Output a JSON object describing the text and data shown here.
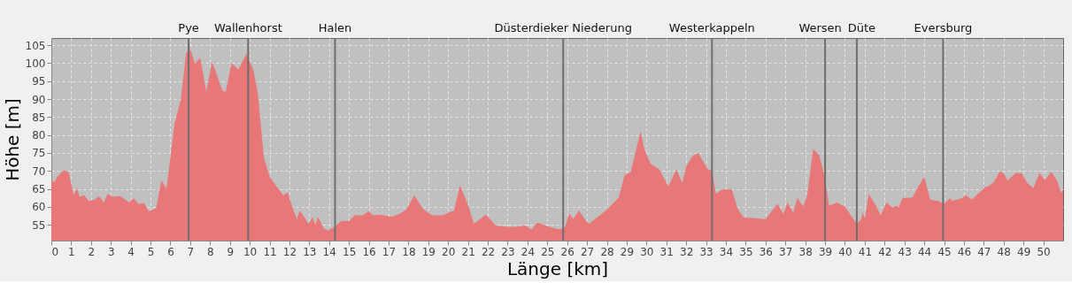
{
  "chart_data": {
    "type": "area",
    "xlabel": "Länge [km]",
    "ylabel": "Höhe [m]",
    "xlim": [
      0,
      51
    ],
    "ylim": [
      50.6,
      107
    ],
    "xticks": [
      0,
      1,
      2,
      3,
      4,
      5,
      6,
      7,
      8,
      9,
      10,
      11,
      12,
      13,
      14,
      15,
      16,
      17,
      18,
      19,
      20,
      21,
      22,
      23,
      24,
      25,
      26,
      27,
      28,
      29,
      30,
      31,
      32,
      33,
      34,
      35,
      36,
      37,
      38,
      39,
      40,
      41,
      42,
      43,
      44,
      45,
      46,
      47,
      48,
      49,
      50
    ],
    "yticks": [
      55,
      60,
      65,
      70,
      75,
      80,
      85,
      90,
      95,
      100,
      105
    ],
    "grid": true,
    "series": [
      {
        "color": "#e87878",
        "x": [
          0,
          0.15,
          0.3,
          0.63,
          0.87,
          1.13,
          1.28,
          1.43,
          1.66,
          1.88,
          2.19,
          2.41,
          2.64,
          2.84,
          3.09,
          3.47,
          3.92,
          4.15,
          4.37,
          4.68,
          4.9,
          5.28,
          5.55,
          5.8,
          5.91,
          6.21,
          6.52,
          6.79,
          6.97,
          7.24,
          7.51,
          7.8,
          8.1,
          8.42,
          8.63,
          8.79,
          9.08,
          9.43,
          9.83,
          10.18,
          10.41,
          10.71,
          11.01,
          11.31,
          11.69,
          11.92,
          12.07,
          12.37,
          12.52,
          12.97,
          13.17,
          13.3,
          13.45,
          13.73,
          13.94,
          14.25,
          14.63,
          15,
          15.3,
          15.68,
          16,
          16.2,
          16.6,
          17.15,
          17.6,
          17.9,
          18.3,
          18.75,
          19.2,
          19.7,
          20.3,
          20.6,
          21,
          21.3,
          21.9,
          22.4,
          22.95,
          23.4,
          23.9,
          24.2,
          24.5,
          25.1,
          25.6,
          25.9,
          26.1,
          26.3,
          26.6,
          26.9,
          27.1,
          27.5,
          28,
          28.6,
          28.9,
          29.2,
          29.7,
          29.9,
          30.2,
          30.65,
          31.1,
          31.5,
          31.8,
          32,
          32.3,
          32.6,
          33.1,
          33.3,
          33.5,
          33.8,
          34.3,
          34.6,
          34.9,
          35.5,
          36,
          36.6,
          36.9,
          37.1,
          37.4,
          37.6,
          37.9,
          38.1,
          38.4,
          38.7,
          39,
          39.2,
          39.6,
          40,
          40.3,
          40.6,
          40.8,
          40.9,
          41,
          41.2,
          41.6,
          41.8,
          42.1,
          42.4,
          42.6,
          42.7,
          42.9,
          43.4,
          43.7,
          44,
          44.3,
          44.7,
          45,
          45.3,
          45.4,
          45.9,
          46.1,
          46.4,
          46.7,
          47.1,
          47.2,
          47.5,
          47.8,
          48,
          48.2,
          48.6,
          48.9,
          49.2,
          49.5,
          49.8,
          50.1,
          50.4,
          50.7,
          50.9,
          51
        ],
        "values": [
          67.6,
          66.8,
          68.4,
          70.2,
          69.6,
          63.2,
          65.2,
          62.8,
          63.2,
          61.6,
          62,
          63,
          61.2,
          63.6,
          62.8,
          63,
          61.2,
          62.4,
          60.8,
          61,
          58.8,
          59.6,
          67.4,
          65,
          69.6,
          83.3,
          89.7,
          102.6,
          104.6,
          99.8,
          101.6,
          92.1,
          100.4,
          95.5,
          92.3,
          92.1,
          100,
          98.2,
          102.6,
          98.2,
          91.7,
          73.7,
          68.4,
          66,
          63.2,
          64,
          61.2,
          56.6,
          59,
          55.3,
          57.2,
          55,
          57.2,
          54,
          53.4,
          54.4,
          56.1,
          56,
          57.6,
          57.6,
          58.8,
          57.6,
          57.8,
          57.2,
          58.2,
          59.3,
          63.2,
          59.3,
          57.6,
          57.6,
          59,
          66,
          60.6,
          55.3,
          57.8,
          54.8,
          54.4,
          54.4,
          54.8,
          53.7,
          55.6,
          54.4,
          53.7,
          54.4,
          58.2,
          56.6,
          59,
          56.4,
          55.3,
          57,
          59.2,
          62.6,
          68.9,
          69.6,
          81,
          75.9,
          72,
          70.4,
          65.6,
          70.4,
          66.6,
          71.2,
          74,
          75,
          70.4,
          70,
          63.6,
          64.8,
          64.8,
          59.4,
          57,
          56.8,
          56.6,
          60.8,
          58,
          61.2,
          58.4,
          62.4,
          60.1,
          63.2,
          76.1,
          74.4,
          68,
          60.3,
          61.2,
          60,
          57.6,
          55.3,
          56.4,
          58.5,
          56.8,
          63.6,
          60,
          57.6,
          61.2,
          59.8,
          60.3,
          59.8,
          62.4,
          62.6,
          65.6,
          68.4,
          62,
          61.6,
          60.8,
          62.4,
          61.6,
          62.4,
          63.2,
          62,
          63.6,
          65.6,
          65.6,
          66.8,
          69.8,
          69.4,
          67.3,
          69.4,
          69.4,
          66.6,
          65.2,
          69.4,
          67.5,
          69.8,
          67.2,
          63.8,
          65
        ]
      }
    ],
    "ref_lines": [
      {
        "axis": "x",
        "value": 6.92,
        "label": "Pye",
        "color": "#6e6e6e"
      },
      {
        "axis": "x",
        "value": 9.92,
        "label": "Wallenhorst",
        "color": "#6e6e6e"
      },
      {
        "axis": "x",
        "value": 14.3,
        "label": "Halen",
        "color": "#6e6e6e"
      },
      {
        "axis": "x",
        "value": 25.8,
        "label": "Düsterdieker Niederung",
        "color": "#6e6e6e"
      },
      {
        "axis": "x",
        "value": 33.3,
        "label": "Westerkappeln",
        "color": "#6e6e6e"
      },
      {
        "axis": "x",
        "value": 39.0,
        "label": "Wersen",
        "color": "#6e6e6e"
      },
      {
        "axis": "x",
        "value": 40.6,
        "label": "Düte",
        "color": "#6e6e6e"
      },
      {
        "axis": "x",
        "value": 44.95,
        "label": "Eversburg",
        "color": "#6e6e6e"
      }
    ]
  }
}
